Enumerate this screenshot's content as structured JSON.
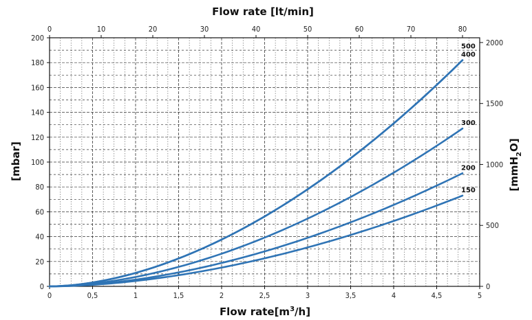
{
  "chart_data": {
    "type": "line",
    "title": "",
    "x_top_label": "Flow rate [lt/min]",
    "x_bottom_label_main": "Flow rate[m",
    "x_bottom_label_sup": "3",
    "x_bottom_label_end": "/h]",
    "y_left_label": "[mbar]",
    "y_right_label_main": "[mmH",
    "y_right_label_sub": "2",
    "y_right_label_end": "O]",
    "x_bottom_range": [
      0,
      5
    ],
    "x_bottom_ticks": [
      "0",
      "0,5",
      "1",
      "1,5",
      "2",
      "2,5",
      "3",
      "3,5",
      "4",
      "4,5",
      "5"
    ],
    "x_top_range": [
      0,
      83.33
    ],
    "x_top_ticks": [
      "0",
      "10",
      "20",
      "30",
      "40",
      "50",
      "60",
      "70",
      "80"
    ],
    "y_left_range": [
      0,
      200
    ],
    "y_left_ticks": [
      "0",
      "20",
      "40",
      "60",
      "80",
      "100",
      "120",
      "140",
      "160",
      "180",
      "200"
    ],
    "y_right_range": [
      0,
      2039
    ],
    "y_right_ticks": [
      "0",
      "500",
      "1000",
      "1500",
      "2000"
    ],
    "grid": true,
    "series": [
      {
        "name": "500",
        "end_x": 4.8,
        "end_y": 182,
        "exponent": 1.8,
        "label_offset": -12
      },
      {
        "name": "400",
        "end_x": 4.8,
        "end_y": 182,
        "exponent": 1.8,
        "label_offset": 0
      },
      {
        "name": "300",
        "end_x": 4.8,
        "end_y": 127,
        "exponent": 1.8,
        "label_offset": 0
      },
      {
        "name": "200",
        "end_x": 4.8,
        "end_y": 91,
        "exponent": 1.8,
        "label_offset": 0
      },
      {
        "name": "150",
        "end_x": 4.8,
        "end_y": 73,
        "exponent": 1.8,
        "label_offset": 0
      }
    ],
    "curve_color": "#2f74b5"
  }
}
